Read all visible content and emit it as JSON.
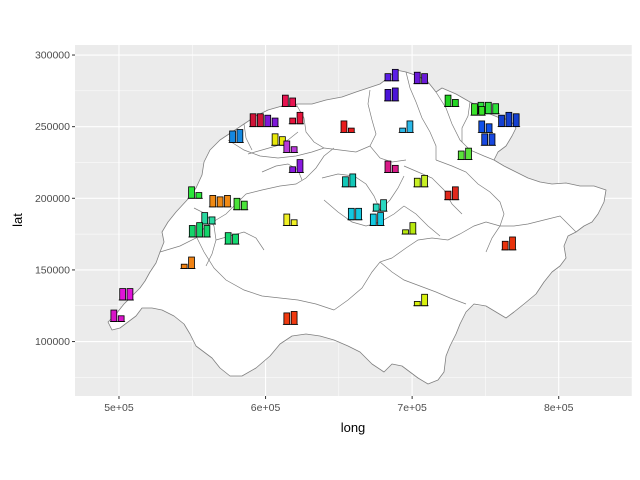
{
  "chart_data": {
    "type": "map-bar-glyphs",
    "title": "",
    "xlabel": "long",
    "ylabel": "lat",
    "xlim": [
      470000,
      850000
    ],
    "ylim": [
      62000,
      307000
    ],
    "x_ticks": [
      500000,
      600000,
      700000,
      800000
    ],
    "x_tick_labels": [
      "5e+05",
      "6e+05",
      "7e+05",
      "8e+05"
    ],
    "y_ticks": [
      100000,
      150000,
      200000,
      250000,
      300000
    ],
    "y_tick_labels": [
      "100000",
      "150000",
      "200000",
      "250000",
      "300000"
    ],
    "grid": true,
    "panel_background": "#ebebeb",
    "grid_color": "#ffffff",
    "map_fill": "#ffffff",
    "map_stroke": "#7f7f7f",
    "glyph_width": 4000,
    "glyph_gap": 1000,
    "glyphs": [
      {
        "x": 686000,
        "y": 282000,
        "values": [
          5000,
          8000
        ],
        "color": "#5a1ee6"
      },
      {
        "x": 706000,
        "y": 280000,
        "values": [
          8000,
          7000
        ],
        "color": "#6a1ad8"
      },
      {
        "x": 686000,
        "y": 268000,
        "values": [
          8000,
          9000
        ],
        "color": "#4a14d8"
      },
      {
        "x": 727000,
        "y": 264000,
        "values": [
          8000,
          5000
        ],
        "color": "#22d422"
      },
      {
        "x": 752000,
        "y": 259000,
        "values": [
          8000,
          8000,
          7000
        ],
        "color": "#2ee03c"
      },
      {
        "x": 745000,
        "y": 258000,
        "values": [
          8000,
          6000
        ],
        "color": "#3ae32a"
      },
      {
        "x": 766000,
        "y": 250000,
        "values": [
          8000,
          10000,
          9000
        ],
        "color": "#1440d0"
      },
      {
        "x": 750000,
        "y": 246000,
        "values": [
          8000,
          6000
        ],
        "color": "#1050e8"
      },
      {
        "x": 752000,
        "y": 237000,
        "values": [
          8000,
          8000
        ],
        "color": "#1848e0"
      },
      {
        "x": 736000,
        "y": 227000,
        "values": [
          6000,
          8000
        ],
        "color": "#5ae33a"
      },
      {
        "x": 616000,
        "y": 264000,
        "values": [
          8000,
          6000
        ],
        "color": "#e61450"
      },
      {
        "x": 621000,
        "y": 252000,
        "values": [
          4000,
          8000
        ],
        "color": "#e6143c"
      },
      {
        "x": 594000,
        "y": 250000,
        "values": [
          9000,
          9000
        ],
        "color": "#d01438"
      },
      {
        "x": 604000,
        "y": 250000,
        "values": [
          8000,
          6000
        ],
        "color": "#7e18d8"
      },
      {
        "x": 656000,
        "y": 246000,
        "values": [
          8000,
          3000
        ],
        "color": "#e81c1c"
      },
      {
        "x": 696000,
        "y": 246000,
        "values": [
          3000,
          8000
        ],
        "color": "#2ab8e8"
      },
      {
        "x": 580000,
        "y": 239000,
        "values": [
          8000,
          9000
        ],
        "color": "#1488e0"
      },
      {
        "x": 609000,
        "y": 237000,
        "values": [
          8000,
          6000
        ],
        "color": "#e8e80a"
      },
      {
        "x": 617000,
        "y": 232000,
        "values": [
          8000,
          4000
        ],
        "color": "#b83ad8"
      },
      {
        "x": 621000,
        "y": 218000,
        "values": [
          4000,
          9000
        ],
        "color": "#8a18e0"
      },
      {
        "x": 686000,
        "y": 218000,
        "values": [
          8000,
          5000
        ],
        "color": "#d81a88"
      },
      {
        "x": 657000,
        "y": 208000,
        "values": [
          7000,
          9000
        ],
        "color": "#14c8b8"
      },
      {
        "x": 706000,
        "y": 208000,
        "values": [
          6000,
          8000
        ],
        "color": "#c8f024"
      },
      {
        "x": 727000,
        "y": 199000,
        "values": [
          6000,
          9000
        ],
        "color": "#e0281c"
      },
      {
        "x": 552000,
        "y": 200000,
        "values": [
          8000,
          4000
        ],
        "color": "#2ae83a"
      },
      {
        "x": 569000,
        "y": 194000,
        "values": [
          8000,
          7000,
          8000
        ],
        "color": "#f08a14"
      },
      {
        "x": 583000,
        "y": 192000,
        "values": [
          8000,
          6000
        ],
        "color": "#4ae33a"
      },
      {
        "x": 561000,
        "y": 182000,
        "values": [
          8000,
          5000
        ],
        "color": "#2ad8a0"
      },
      {
        "x": 555000,
        "y": 173000,
        "values": [
          8000,
          10000,
          8000
        ],
        "color": "#14d46a"
      },
      {
        "x": 577000,
        "y": 168000,
        "values": [
          8000,
          7000
        ],
        "color": "#14d870"
      },
      {
        "x": 661000,
        "y": 185000,
        "values": [
          8000,
          8000
        ],
        "color": "#14c8e0"
      },
      {
        "x": 678000,
        "y": 191000,
        "values": [
          5000,
          8000
        ],
        "color": "#2ad8c0"
      },
      {
        "x": 676000,
        "y": 181000,
        "values": [
          8000,
          9000
        ],
        "color": "#14c8e0"
      },
      {
        "x": 698000,
        "y": 175000,
        "values": [
          3000,
          8000
        ],
        "color": "#b8e80e"
      },
      {
        "x": 617000,
        "y": 181000,
        "values": [
          8000,
          4000
        ],
        "color": "#f0f024"
      },
      {
        "x": 547000,
        "y": 151000,
        "values": [
          3000,
          8000
        ],
        "color": "#f08214"
      },
      {
        "x": 766000,
        "y": 164000,
        "values": [
          6000,
          9000
        ],
        "color": "#e8320c"
      },
      {
        "x": 617000,
        "y": 112000,
        "values": [
          8000,
          9000
        ],
        "color": "#f03a10"
      },
      {
        "x": 706000,
        "y": 125000,
        "values": [
          3000,
          8000
        ],
        "color": "#d8f00e"
      },
      {
        "x": 505000,
        "y": 129000,
        "values": [
          8000,
          8000
        ],
        "color": "#e014d8"
      },
      {
        "x": 499000,
        "y": 114000,
        "values": [
          8000,
          4000
        ],
        "color": "#d814c8"
      }
    ]
  }
}
